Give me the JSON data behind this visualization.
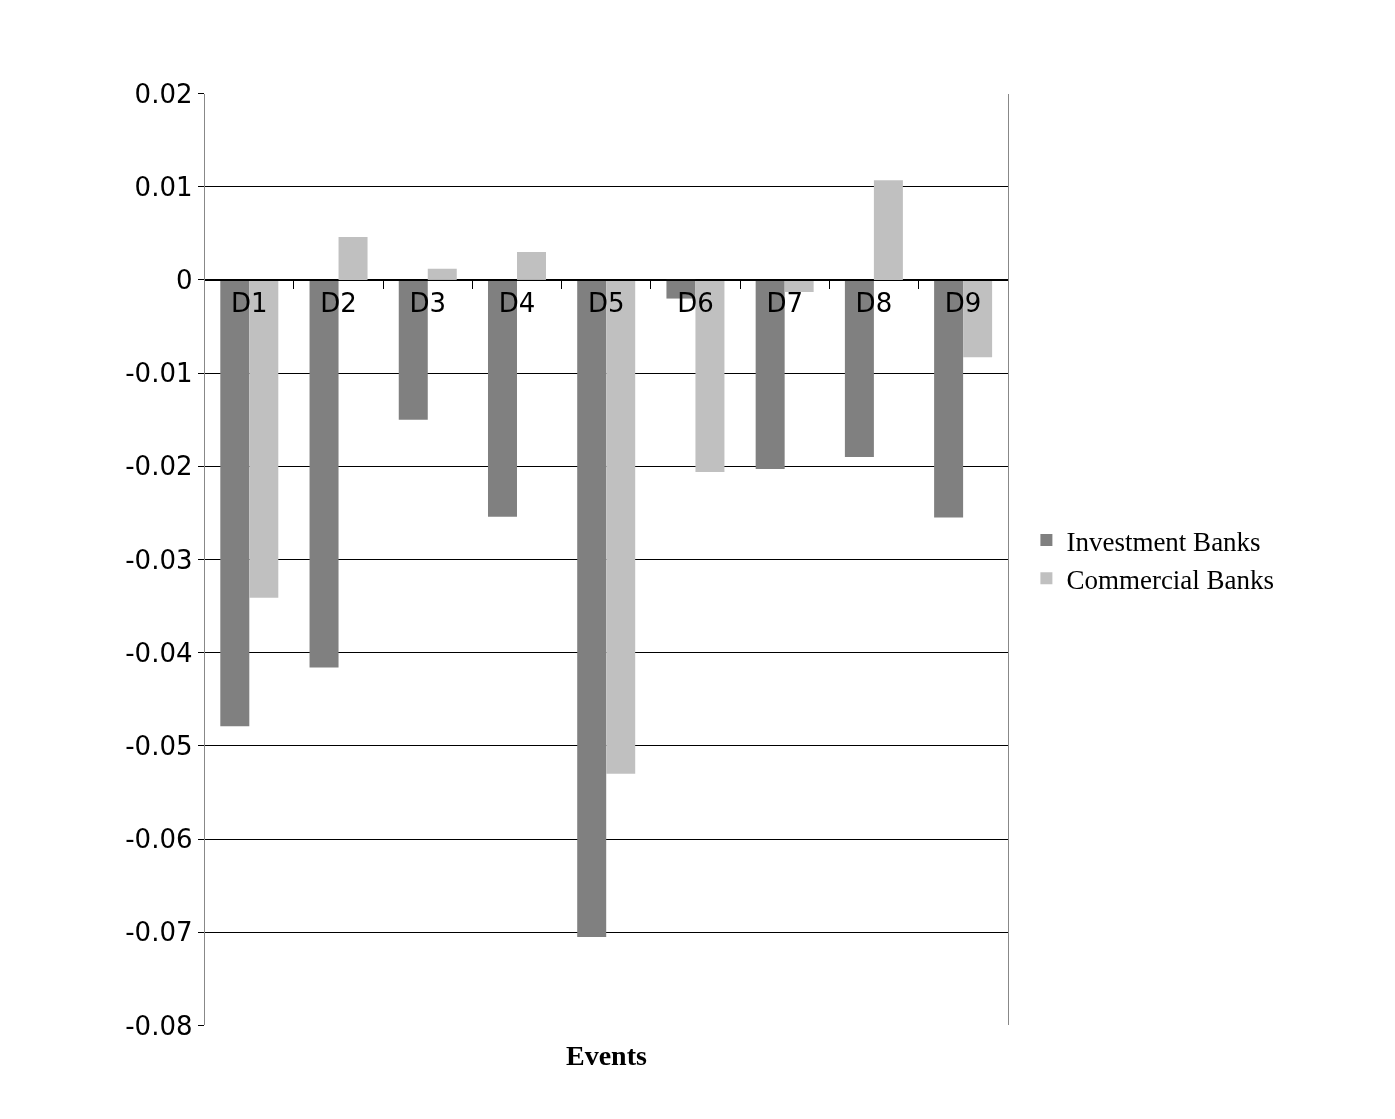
{
  "chart_data": {
    "type": "bar",
    "xlabel": "Events",
    "categories": [
      "D1",
      "D2",
      "D3",
      "D4",
      "D5",
      "D6",
      "D7",
      "D8",
      "D9"
    ],
    "series": [
      {
        "name": "Investment Banks",
        "color": "#808080",
        "values": [
          -0.0479,
          -0.0416,
          -0.015,
          -0.0254,
          -0.0705,
          -0.002,
          -0.0203,
          -0.019,
          -0.0255
        ]
      },
      {
        "name": "Commercial Banks",
        "color": "#c0c0c0",
        "values": [
          -0.0341,
          0.0046,
          0.0012,
          0.003,
          -0.053,
          -0.0206,
          -0.0013,
          0.0107,
          -0.0083
        ]
      }
    ],
    "ylim": [
      -0.08,
      0.02
    ],
    "yticks": [
      -0.08,
      -0.07,
      -0.06,
      -0.05,
      -0.04,
      -0.03,
      -0.02,
      -0.01,
      0,
      0.01,
      0.02
    ],
    "grid": "y",
    "legend": "right"
  }
}
